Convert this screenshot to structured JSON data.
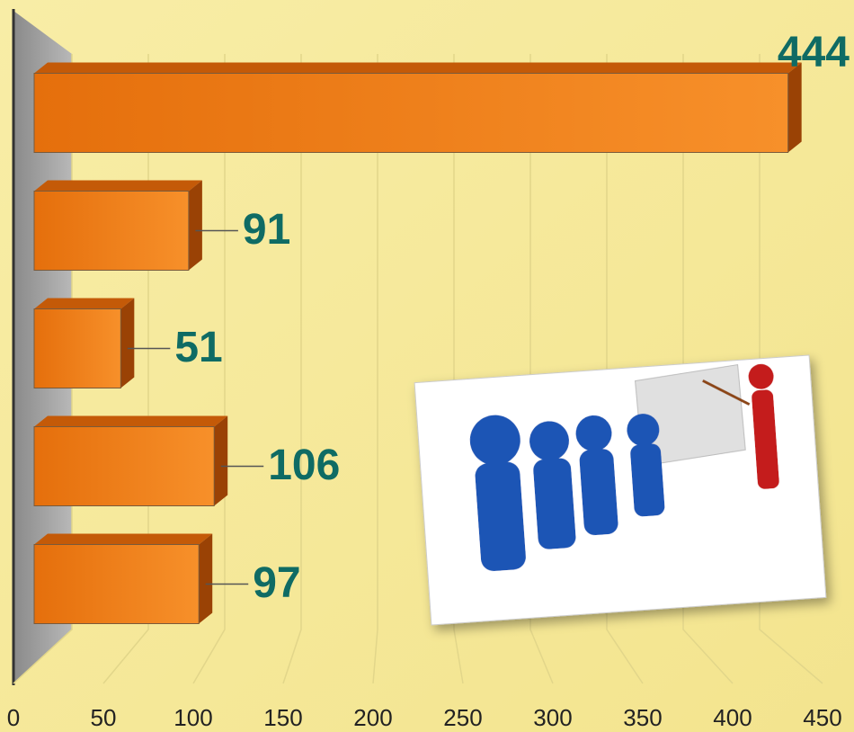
{
  "chart_data": {
    "type": "bar",
    "orientation": "horizontal",
    "categories": [
      null,
      null,
      null,
      null,
      null
    ],
    "values": [
      444,
      91,
      51,
      106,
      97
    ],
    "color": "#e8730f",
    "xlim": [
      0,
      450
    ],
    "xticks": [
      0,
      50,
      100,
      150,
      200,
      250,
      300,
      350,
      400,
      450
    ],
    "grid": true
  }
}
